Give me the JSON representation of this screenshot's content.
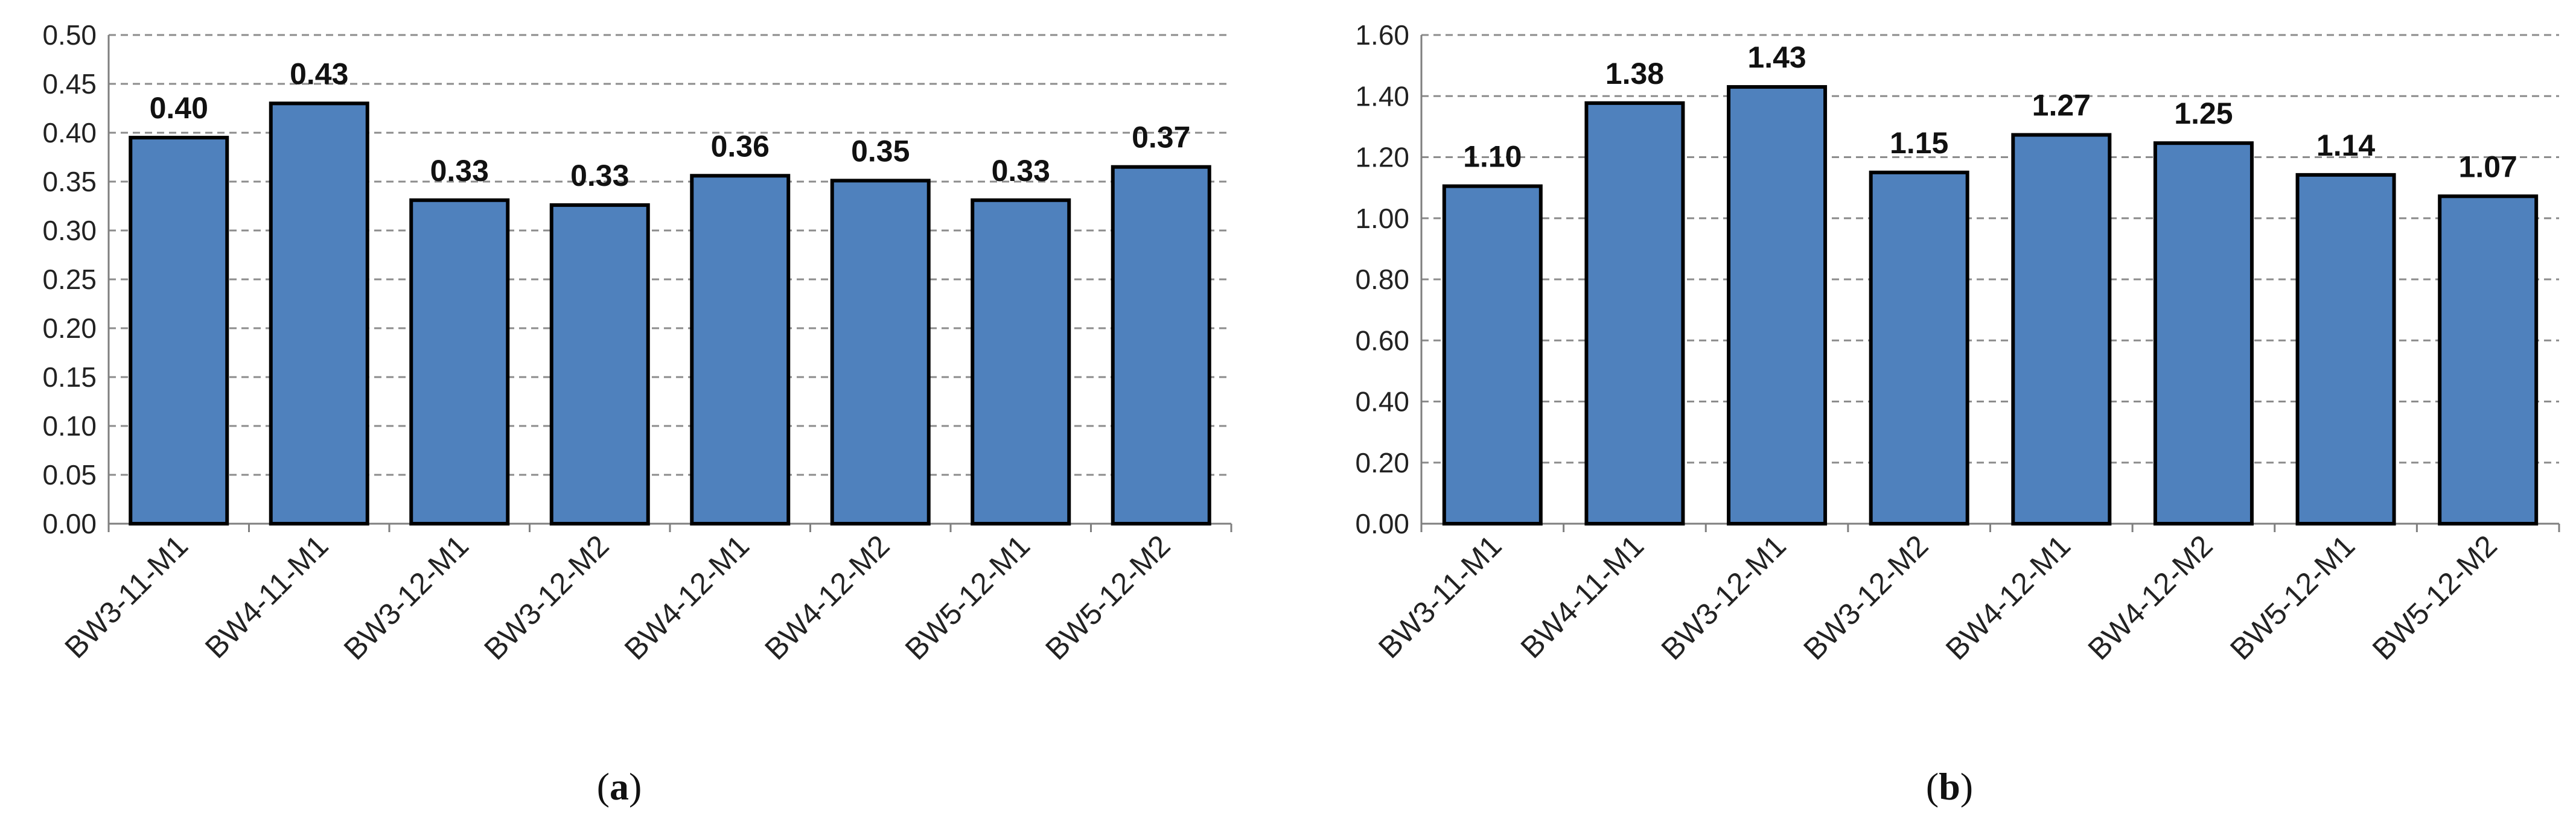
{
  "colors": {
    "bar_fill": "#4F81BD",
    "bar_stroke": "#000000",
    "grid": "#8c8c8c",
    "axis": "#7f7f7f"
  },
  "chart_data": [
    {
      "type": "bar",
      "panel_label": "a",
      "categories": [
        "BW3-11-M1",
        "BW4-11-M1",
        "BW3-12-M1",
        "BW3-12-M2",
        "BW4-12-M1",
        "BW4-12-M2",
        "BW5-12-M1",
        "BW5-12-M2"
      ],
      "values": [
        0.395,
        0.43,
        0.331,
        0.326,
        0.356,
        0.351,
        0.331,
        0.365
      ],
      "data_labels": [
        "0.40",
        "0.43",
        "0.33",
        "0.33",
        "0.36",
        "0.35",
        "0.33",
        "0.37"
      ],
      "y_ticks": [
        "0.00",
        "0.05",
        "0.10",
        "0.15",
        "0.20",
        "0.25",
        "0.30",
        "0.35",
        "0.40",
        "0.45",
        "0.50"
      ],
      "ylim": [
        0,
        0.5
      ],
      "grid": true,
      "legend": false,
      "xlabel": "",
      "ylabel": ""
    },
    {
      "type": "bar",
      "panel_label": "b",
      "categories": [
        "BW3-11-M1",
        "BW4-11-M1",
        "BW3-12-M1",
        "BW3-12-M2",
        "BW4-12-M1",
        "BW4-12-M2",
        "BW5-12-M1",
        "BW5-12-M2"
      ],
      "values": [
        1.105,
        1.377,
        1.43,
        1.15,
        1.273,
        1.246,
        1.142,
        1.072
      ],
      "data_labels": [
        "1.10",
        "1.38",
        "1.43",
        "1.15",
        "1.27",
        "1.25",
        "1.14",
        "1.07"
      ],
      "y_ticks": [
        "0.00",
        "0.20",
        "0.40",
        "0.60",
        "0.80",
        "1.00",
        "1.20",
        "1.40",
        "1.60"
      ],
      "ylim": [
        0,
        1.6
      ],
      "grid": true,
      "legend": false,
      "xlabel": "",
      "ylabel": ""
    }
  ]
}
